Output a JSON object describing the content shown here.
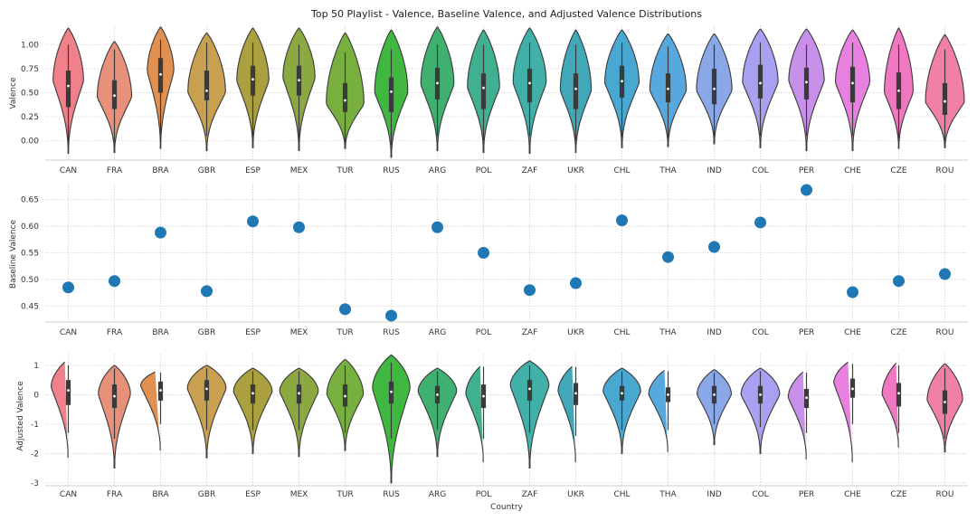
{
  "chart_data": [
    {
      "type": "violin",
      "title": "Top 50 Playlist - Valence, Baseline Valence, and Adjusted Valence Distributions",
      "xlabel": "",
      "ylabel": "Valence",
      "categories": [
        "CAN",
        "FRA",
        "BRA",
        "GBR",
        "ESP",
        "MEX",
        "TUR",
        "RUS",
        "ARG",
        "POL",
        "ZAF",
        "UKR",
        "CHL",
        "THA",
        "IND",
        "COL",
        "PER",
        "CHE",
        "CZE",
        "ROU"
      ],
      "colors": [
        "#f0808a",
        "#e8917a",
        "#e09050",
        "#c8a050",
        "#aaa040",
        "#8ca840",
        "#78b040",
        "#40b840",
        "#40b070",
        "#40b090",
        "#40b0a8",
        "#40a8b8",
        "#48a8d0",
        "#58a8e0",
        "#8aa8e8",
        "#a8a0f0",
        "#c890e8",
        "#e880e0",
        "#f078c0",
        "#f080a8"
      ],
      "yticks": [
        "0.00",
        "0.25",
        "0.50",
        "0.75",
        "1.00"
      ],
      "ylim": [
        -0.2,
        1.2
      ],
      "grid": true,
      "violins": [
        {
          "min": -0.13,
          "max": 1.17,
          "q1": 0.35,
          "median": 0.57,
          "q3": 0.73,
          "whisker_low": -0.05,
          "whisker_high": 1.0,
          "peak": 0.62,
          "width": 0.55
        },
        {
          "min": -0.12,
          "max": 1.03,
          "q1": 0.33,
          "median": 0.47,
          "q3": 0.63,
          "whisker_low": -0.02,
          "whisker_high": 0.95,
          "peak": 0.45,
          "width": 0.62
        },
        {
          "min": -0.08,
          "max": 1.18,
          "q1": 0.5,
          "median": 0.69,
          "q3": 0.86,
          "whisker_low": 0.05,
          "whisker_high": 1.05,
          "peak": 0.72,
          "width": 0.48
        },
        {
          "min": -0.1,
          "max": 1.12,
          "q1": 0.42,
          "median": 0.52,
          "q3": 0.73,
          "whisker_low": 0.05,
          "whisker_high": 1.02,
          "peak": 0.5,
          "width": 0.68
        },
        {
          "min": -0.07,
          "max": 1.17,
          "q1": 0.47,
          "median": 0.64,
          "q3": 0.78,
          "whisker_low": 0.05,
          "whisker_high": 1.02,
          "peak": 0.62,
          "width": 0.58
        },
        {
          "min": -0.1,
          "max": 1.17,
          "q1": 0.47,
          "median": 0.63,
          "q3": 0.78,
          "whisker_low": 0.02,
          "whisker_high": 1.0,
          "peak": 0.65,
          "width": 0.58
        },
        {
          "min": -0.08,
          "max": 1.12,
          "q1": 0.3,
          "median": 0.42,
          "q3": 0.6,
          "whisker_low": -0.02,
          "whisker_high": 0.92,
          "peak": 0.38,
          "width": 0.68
        },
        {
          "min": -0.17,
          "max": 1.15,
          "q1": 0.3,
          "median": 0.51,
          "q3": 0.66,
          "whisker_low": -0.05,
          "whisker_high": 0.95,
          "peak": 0.5,
          "width": 0.6
        },
        {
          "min": -0.1,
          "max": 1.18,
          "q1": 0.43,
          "median": 0.6,
          "q3": 0.76,
          "whisker_low": 0.05,
          "whisker_high": 1.0,
          "peak": 0.58,
          "width": 0.6
        },
        {
          "min": -0.12,
          "max": 1.15,
          "q1": 0.33,
          "median": 0.55,
          "q3": 0.7,
          "whisker_low": 0.0,
          "whisker_high": 1.0,
          "peak": 0.55,
          "width": 0.58
        },
        {
          "min": -0.13,
          "max": 1.17,
          "q1": 0.4,
          "median": 0.6,
          "q3": 0.75,
          "whisker_low": 0.05,
          "whisker_high": 1.02,
          "peak": 0.6,
          "width": 0.6
        },
        {
          "min": -0.12,
          "max": 1.15,
          "q1": 0.33,
          "median": 0.54,
          "q3": 0.7,
          "whisker_low": 0.0,
          "whisker_high": 1.0,
          "peak": 0.52,
          "width": 0.56
        },
        {
          "min": -0.07,
          "max": 1.15,
          "q1": 0.45,
          "median": 0.62,
          "q3": 0.78,
          "whisker_low": 0.05,
          "whisker_high": 1.02,
          "peak": 0.6,
          "width": 0.62
        },
        {
          "min": -0.06,
          "max": 1.11,
          "q1": 0.4,
          "median": 0.54,
          "q3": 0.7,
          "whisker_low": 0.02,
          "whisker_high": 0.98,
          "peak": 0.52,
          "width": 0.66
        },
        {
          "min": -0.03,
          "max": 1.11,
          "q1": 0.38,
          "median": 0.54,
          "q3": 0.75,
          "whisker_low": 0.05,
          "whisker_high": 1.0,
          "peak": 0.52,
          "width": 0.64
        },
        {
          "min": -0.07,
          "max": 1.16,
          "q1": 0.44,
          "median": 0.6,
          "q3": 0.79,
          "whisker_low": 0.05,
          "whisker_high": 1.02,
          "peak": 0.6,
          "width": 0.64
        },
        {
          "min": -0.1,
          "max": 1.16,
          "q1": 0.43,
          "median": 0.61,
          "q3": 0.76,
          "whisker_low": 0.05,
          "whisker_high": 1.0,
          "peak": 0.62,
          "width": 0.64
        },
        {
          "min": -0.1,
          "max": 1.15,
          "q1": 0.4,
          "median": 0.6,
          "q3": 0.77,
          "whisker_low": 0.05,
          "whisker_high": 1.02,
          "peak": 0.6,
          "width": 0.62
        },
        {
          "min": -0.08,
          "max": 1.17,
          "q1": 0.33,
          "median": 0.52,
          "q3": 0.71,
          "whisker_low": 0.02,
          "whisker_high": 1.0,
          "peak": 0.5,
          "width": 0.52
        },
        {
          "min": -0.07,
          "max": 1.1,
          "q1": 0.27,
          "median": 0.41,
          "q3": 0.6,
          "whisker_low": 0.0,
          "whisker_high": 0.95,
          "peak": 0.4,
          "width": 0.7
        }
      ]
    },
    {
      "type": "scatter",
      "xlabel": "",
      "ylabel": "Baseline Valence",
      "categories": [
        "CAN",
        "FRA",
        "BRA",
        "GBR",
        "ESP",
        "MEX",
        "TUR",
        "RUS",
        "ARG",
        "POL",
        "ZAF",
        "UKR",
        "CHL",
        "THA",
        "IND",
        "COL",
        "PER",
        "CHE",
        "CZE",
        "ROU"
      ],
      "values": [
        0.485,
        0.497,
        0.588,
        0.478,
        0.609,
        0.598,
        0.444,
        0.432,
        0.598,
        0.55,
        0.48,
        0.493,
        0.611,
        0.542,
        0.561,
        0.607,
        0.668,
        0.476,
        0.497,
        0.51
      ],
      "yticks": [
        "0.45",
        "0.50",
        "0.55",
        "0.60",
        "0.65"
      ],
      "ylim": [
        0.42,
        0.68
      ],
      "color": "#1f77b4",
      "grid": true
    },
    {
      "type": "violin",
      "xlabel": "Country",
      "ylabel": "Adjusted Valence",
      "categories": [
        "CAN",
        "FRA",
        "BRA",
        "GBR",
        "ESP",
        "MEX",
        "TUR",
        "RUS",
        "ARG",
        "POL",
        "ZAF",
        "UKR",
        "CHL",
        "THA",
        "IND",
        "COL",
        "PER",
        "CHE",
        "CZE",
        "ROU"
      ],
      "colors": [
        "#f0808a",
        "#e8917a",
        "#e09050",
        "#c8a050",
        "#aaa040",
        "#8ca840",
        "#78b040",
        "#40b840",
        "#40b070",
        "#40b090",
        "#40b0a8",
        "#40a8b8",
        "#48a8d0",
        "#58a8e0",
        "#8aa8e8",
        "#a8a0f0",
        "#c890e8",
        "#e880e0",
        "#f078c0",
        "#f080a8"
      ],
      "yticks": [
        "-3",
        "-2",
        "-1",
        "0",
        "1"
      ],
      "ylim": [
        -3.1,
        1.4
      ],
      "grid": true,
      "violins": [
        {
          "min": -2.15,
          "max": 1.2,
          "q1": -0.35,
          "median": 0.15,
          "q3": 0.5,
          "whisker_low": -1.3,
          "whisker_high": 1.0,
          "peak": 0.25,
          "width": 0.62
        },
        {
          "min": -2.5,
          "max": 1.0,
          "q1": -0.45,
          "median": -0.05,
          "q3": 0.35,
          "whisker_low": -1.5,
          "whisker_high": 0.9,
          "peak": 0.0,
          "width": 0.58
        },
        {
          "min": -1.9,
          "max": 0.85,
          "q1": -0.2,
          "median": 0.15,
          "q3": 0.45,
          "whisker_low": -1.0,
          "whisker_high": 0.75,
          "peak": 0.3,
          "width": 0.72
        },
        {
          "min": -2.15,
          "max": 1.0,
          "q1": -0.2,
          "median": 0.2,
          "q3": 0.5,
          "whisker_low": -1.2,
          "whisker_high": 0.9,
          "peak": 0.2,
          "width": 0.7
        },
        {
          "min": -2.0,
          "max": 0.9,
          "q1": -0.3,
          "median": 0.05,
          "q3": 0.35,
          "whisker_low": -1.2,
          "whisker_high": 0.8,
          "peak": 0.1,
          "width": 0.7
        },
        {
          "min": -2.1,
          "max": 0.9,
          "q1": -0.3,
          "median": 0.05,
          "q3": 0.35,
          "whisker_low": -1.2,
          "whisker_high": 0.8,
          "peak": 0.1,
          "width": 0.7
        },
        {
          "min": -1.9,
          "max": 1.2,
          "q1": -0.4,
          "median": -0.05,
          "q3": 0.35,
          "whisker_low": -1.3,
          "whisker_high": 1.0,
          "peak": 0.0,
          "width": 0.66
        },
        {
          "min": -3.0,
          "max": 1.35,
          "q1": -0.3,
          "median": 0.1,
          "q3": 0.45,
          "whisker_low": -1.5,
          "whisker_high": 1.1,
          "peak": 0.2,
          "width": 0.68
        },
        {
          "min": -2.1,
          "max": 0.9,
          "q1": -0.3,
          "median": 0.0,
          "q3": 0.3,
          "whisker_low": -1.2,
          "whisker_high": 0.8,
          "peak": 0.1,
          "width": 0.7
        },
        {
          "min": -2.3,
          "max": 1.05,
          "q1": -0.45,
          "median": -0.05,
          "q3": 0.35,
          "whisker_low": -1.5,
          "whisker_high": 0.95,
          "peak": 0.0,
          "width": 0.64
        },
        {
          "min": -2.5,
          "max": 1.15,
          "q1": -0.2,
          "median": 0.2,
          "q3": 0.5,
          "whisker_low": -1.3,
          "whisker_high": 1.0,
          "peak": 0.3,
          "width": 0.7
        },
        {
          "min": -2.3,
          "max": 1.05,
          "q1": -0.35,
          "median": 0.05,
          "q3": 0.4,
          "whisker_low": -1.4,
          "whisker_high": 0.95,
          "peak": 0.1,
          "width": 0.64
        },
        {
          "min": -2.0,
          "max": 0.9,
          "q1": -0.2,
          "median": 0.05,
          "q3": 0.3,
          "whisker_low": -1.2,
          "whisker_high": 0.8,
          "peak": 0.1,
          "width": 0.68
        },
        {
          "min": -1.95,
          "max": 0.9,
          "q1": -0.25,
          "median": 0.0,
          "q3": 0.25,
          "whisker_low": -1.2,
          "whisker_high": 0.8,
          "peak": 0.0,
          "width": 0.7
        },
        {
          "min": -1.7,
          "max": 0.85,
          "q1": -0.3,
          "median": 0.0,
          "q3": 0.3,
          "whisker_low": -1.0,
          "whisker_high": 0.75,
          "peak": 0.0,
          "width": 0.62
        },
        {
          "min": -2.0,
          "max": 0.9,
          "q1": -0.3,
          "median": 0.0,
          "q3": 0.3,
          "whisker_low": -1.1,
          "whisker_high": 0.8,
          "peak": 0.0,
          "width": 0.7
        },
        {
          "min": -2.2,
          "max": 0.85,
          "q1": -0.45,
          "median": -0.1,
          "q3": 0.2,
          "whisker_low": -1.3,
          "whisker_high": 0.75,
          "peak": -0.1,
          "width": 0.66
        },
        {
          "min": -2.3,
          "max": 1.2,
          "q1": -0.1,
          "median": 0.2,
          "q3": 0.55,
          "whisker_low": -1.0,
          "whisker_high": 1.05,
          "peak": 0.4,
          "width": 0.68
        },
        {
          "min": -1.8,
          "max": 1.15,
          "q1": -0.4,
          "median": 0.05,
          "q3": 0.4,
          "whisker_low": -1.3,
          "whisker_high": 1.0,
          "peak": 0.0,
          "width": 0.6
        },
        {
          "min": -1.95,
          "max": 1.05,
          "q1": -0.65,
          "median": -0.25,
          "q3": 0.15,
          "whisker_low": -1.5,
          "whisker_high": 0.9,
          "peak": -0.2,
          "width": 0.64
        }
      ]
    }
  ]
}
